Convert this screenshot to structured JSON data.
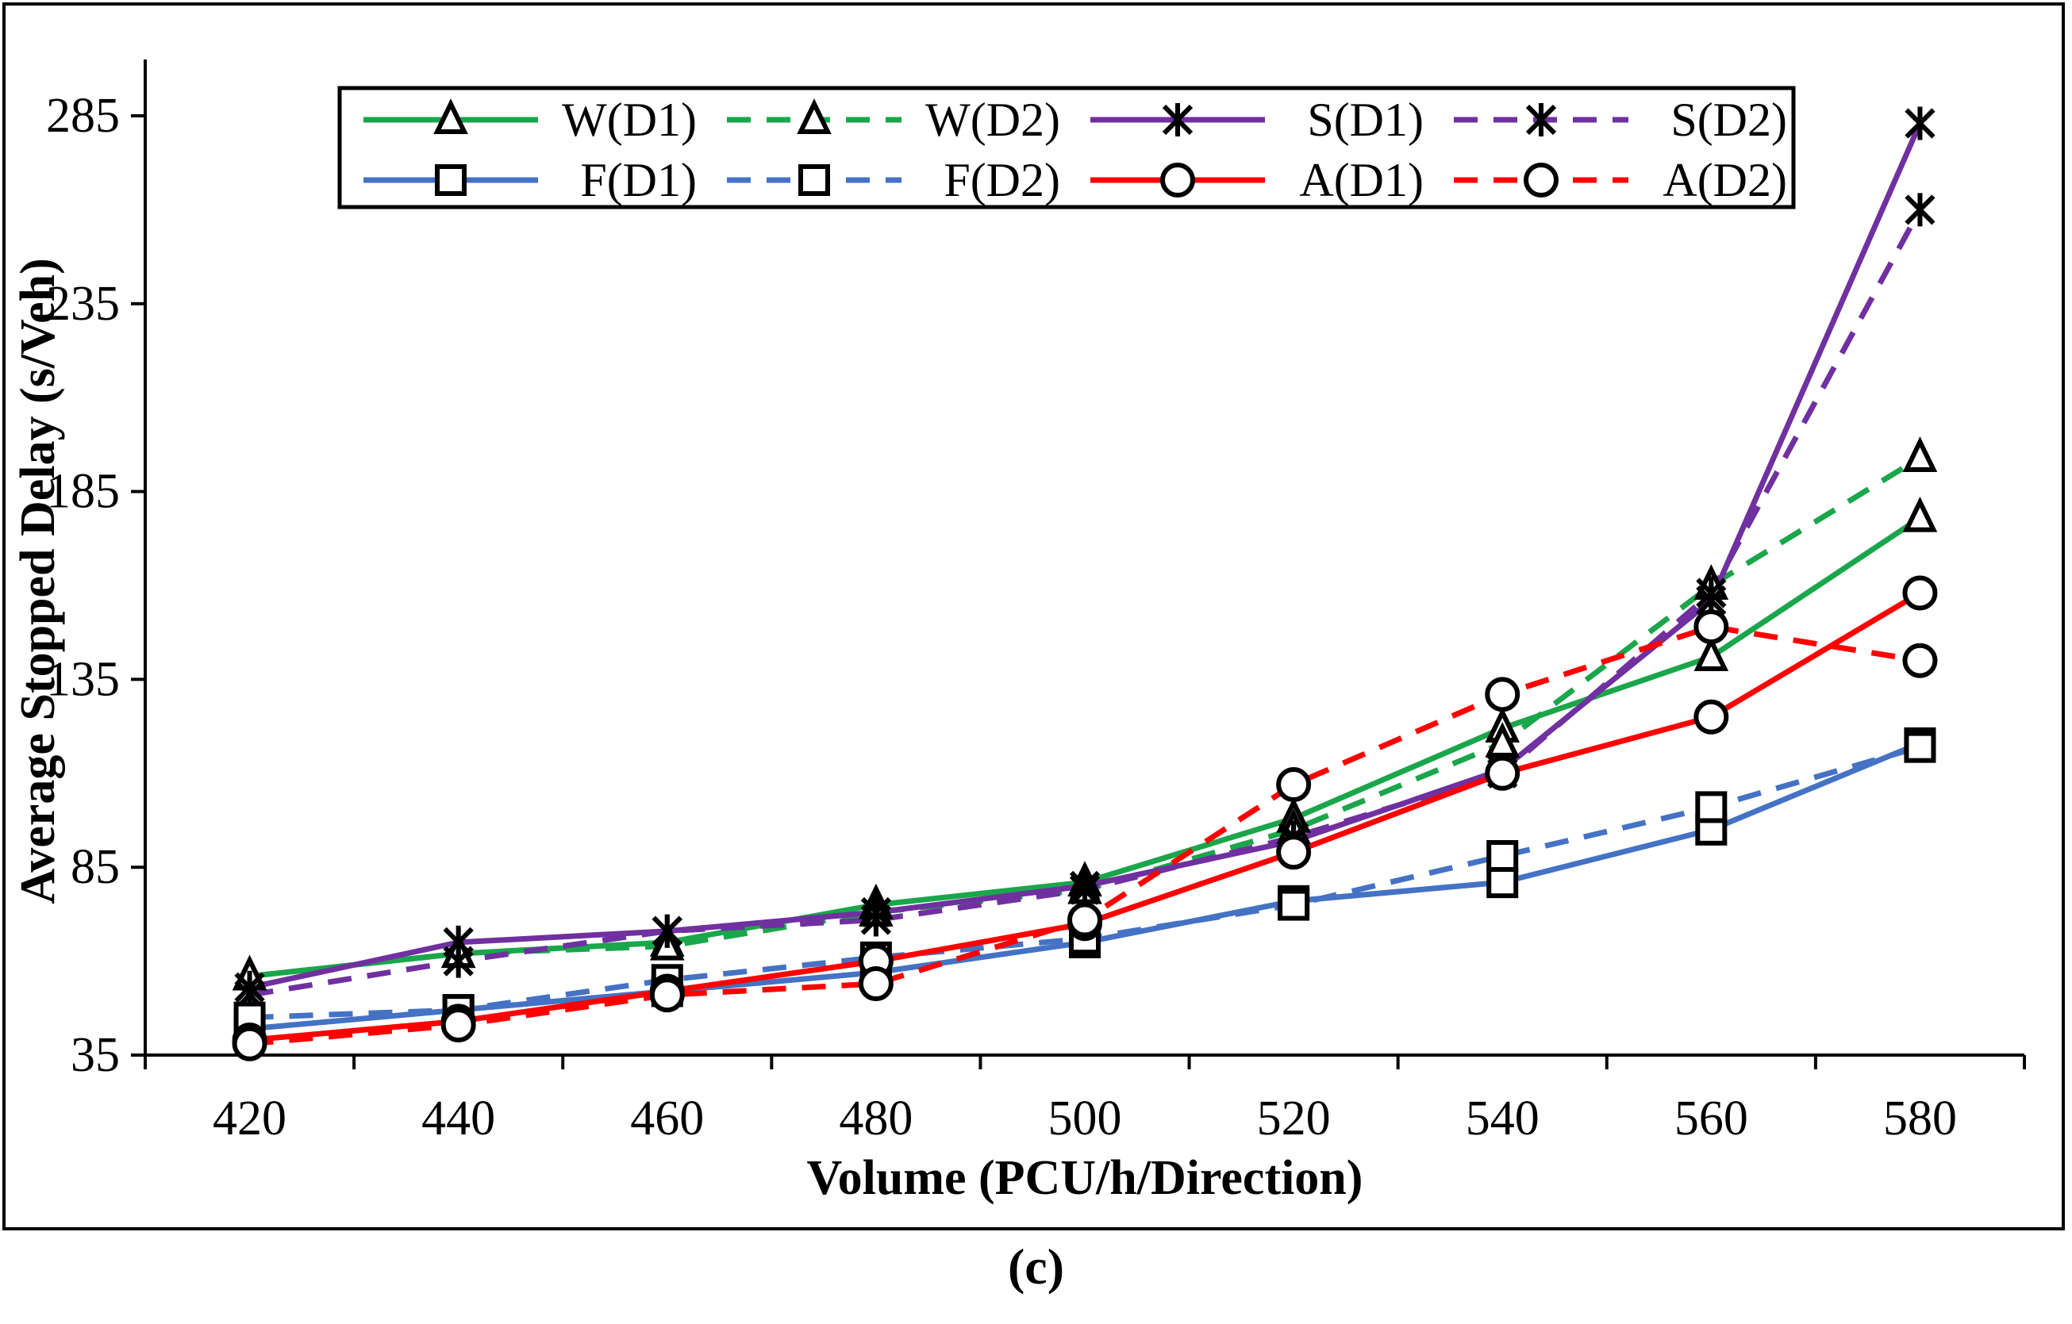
{
  "chart_data": {
    "type": "line",
    "caption": "(c)",
    "xlabel": "Volume (PCU/h/Direction)",
    "ylabel": "Average Stopped Delay (s/Veh)",
    "categories": [
      420,
      440,
      460,
      480,
      500,
      520,
      540,
      560,
      580
    ],
    "ylim": [
      35,
      300
    ],
    "yticks": [
      35,
      85,
      135,
      185,
      235,
      285
    ],
    "legend_position": "top",
    "series": [
      {
        "name": "W(D1)",
        "color": "#1aa64a",
        "dash": "solid",
        "marker": "triangle",
        "values": [
          56,
          62,
          65,
          75,
          81,
          98,
          122,
          141,
          178
        ]
      },
      {
        "name": "W(D2)",
        "color": "#1aa64a",
        "dash": "dashed",
        "marker": "triangle",
        "values": [
          56,
          62,
          64,
          73,
          79,
          95,
          118,
          160,
          194
        ]
      },
      {
        "name": "S(D1)",
        "color": "#7030a0",
        "dash": "solid",
        "marker": "asterisk",
        "values": [
          53,
          65,
          68,
          73,
          80,
          92,
          111,
          156,
          283
        ]
      },
      {
        "name": "S(D2)",
        "color": "#7030a0",
        "dash": "dashed",
        "marker": "asterisk",
        "values": [
          51,
          60,
          68,
          71,
          79,
          93,
          110,
          158,
          260
        ]
      },
      {
        "name": "F(D1)",
        "color": "#4472c4",
        "dash": "solid",
        "marker": "square",
        "values": [
          42,
          47,
          52,
          57,
          65,
          76,
          81,
          95,
          118
        ]
      },
      {
        "name": "F(D2)",
        "color": "#4472c4",
        "dash": "dashed",
        "marker": "square",
        "values": [
          45,
          47,
          55,
          61,
          66,
          75,
          88,
          101,
          117
        ]
      },
      {
        "name": "A(D1)",
        "color": "#ff0000",
        "dash": "solid",
        "marker": "circle",
        "values": [
          39,
          44,
          52,
          60,
          70,
          89,
          110,
          125,
          158
        ]
      },
      {
        "name": "A(D2)",
        "color": "#ff0000",
        "dash": "dashed",
        "marker": "circle",
        "values": [
          38,
          43,
          51,
          54,
          71,
          107,
          131,
          149,
          140
        ]
      }
    ]
  }
}
